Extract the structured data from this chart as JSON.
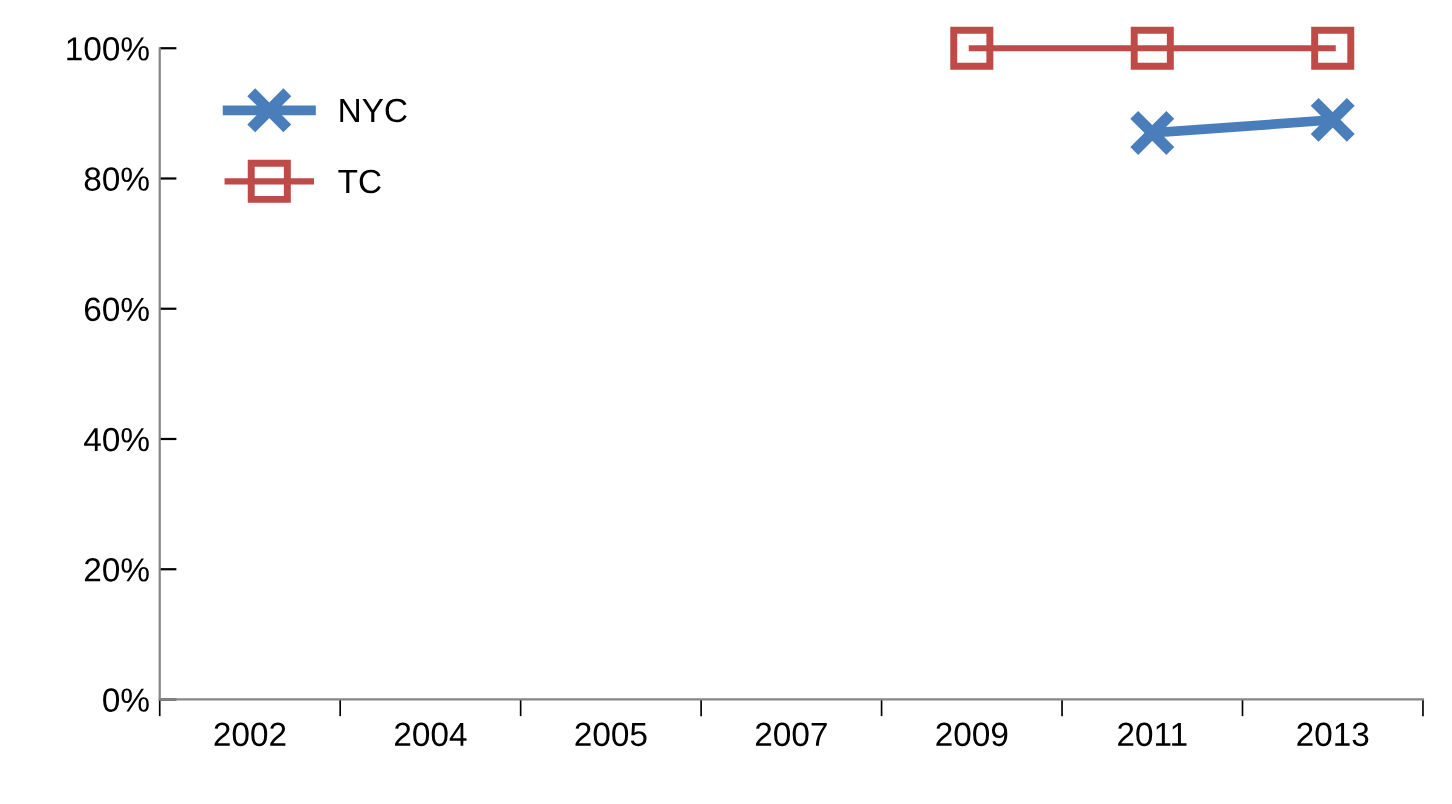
{
  "chart_data": {
    "type": "line",
    "categories": [
      "2002",
      "2004",
      "2005",
      "2007",
      "2009",
      "2011",
      "2013"
    ],
    "series": [
      {
        "name": "NYC",
        "color": "#4a7ebb",
        "marker": "cross",
        "values": [
          null,
          null,
          null,
          null,
          null,
          87,
          89
        ]
      },
      {
        "name": "TC",
        "color": "#be4b48",
        "marker": "square",
        "values": [
          null,
          null,
          null,
          null,
          100,
          100,
          100
        ]
      }
    ],
    "ylim": [
      0,
      100
    ],
    "yticks": [
      {
        "value": 0,
        "label": "0%"
      },
      {
        "value": 20,
        "label": "20%"
      },
      {
        "value": 40,
        "label": "40%"
      },
      {
        "value": 60,
        "label": "60%"
      },
      {
        "value": 80,
        "label": "80%"
      },
      {
        "value": 100,
        "label": "100%"
      }
    ],
    "grid": false,
    "legend": "top left"
  }
}
